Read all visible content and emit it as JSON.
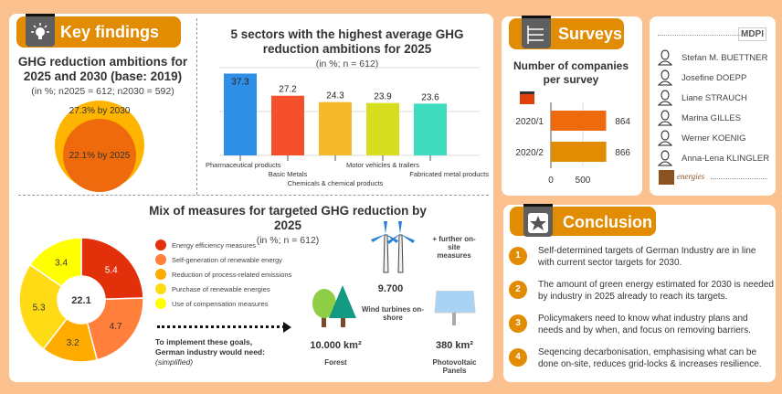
{
  "key_findings": {
    "header": "Key findings",
    "title": "GHG reduction ambitions for 2025 and 2030 (base: 2019)",
    "subtitle": "(in %; n2025 = 612; n2030 = 592)",
    "outer_label": "27.3% by 2030",
    "inner_label": "22.1% by 2025"
  },
  "sectors": {
    "title": "5 sectors with the highest average GHG reduction ambitions for 2025",
    "subtitle": "(in %; n = 612)"
  },
  "mix": {
    "title": "Mix of measures for targeted GHG reduction by 2025",
    "subtitle": "(in %; n = 612)",
    "center": "22.1",
    "arrow_text": "To implement these goals, German industry would need:",
    "arrow_note": "(simplified)"
  },
  "needs": {
    "further": "+ further on-site measures",
    "wind_value": "9.700",
    "wind_label": "Wind turbines on-shore",
    "forest_value": "10.000 km²",
    "forest_label": "Forest",
    "pv_value": "380 km²",
    "pv_label": "Photovoltaic Panels"
  },
  "surveys": {
    "header": "Surveys",
    "title": "Number of companies per survey"
  },
  "authors": {
    "publisher": "MDPI",
    "journal": "energies",
    "names": [
      "Stefan M. BUETTNER",
      "Josefine DOEPP",
      "Liane STRAUCH",
      "Marina GILLES",
      "Werner KOENIG",
      "Anna-Lena KLINGLER"
    ]
  },
  "conclusion": {
    "header": "Conclusion",
    "items": [
      {
        "n": "1",
        "text": "Self-determined targets of German Industry are in line with current sector targets for 2030."
      },
      {
        "n": "2",
        "text": "The amount of green energy estimated for 2030 is needed by industry in 2025 already to reach its targets."
      },
      {
        "n": "3",
        "text": "Policymakers need to know what industry plans and needs and by when, and focus on removing barriers."
      },
      {
        "n": "4",
        "text": "Seqencing decarbonisation, emphasising what can be done on-site, reduces grid-locks & increases resilience."
      }
    ]
  },
  "chart_data": [
    {
      "type": "bar",
      "title": "5 sectors with the highest average GHG reduction ambitions for 2025",
      "categories": [
        "Pharmaceutical products",
        "Basic Metals",
        "Chemicals & chemical products",
        "Motor vehicles & trailers",
        "Fabricated metal products"
      ],
      "values": [
        37.3,
        27.2,
        24.3,
        23.9,
        23.6
      ],
      "labels": [
        "37.3",
        "27.2",
        "24.3",
        "23.9",
        "23.6"
      ],
      "colors": [
        "#2f8fe6",
        "#f5502c",
        "#f6b92b",
        "#d6de1f",
        "#3fdcc0"
      ],
      "ylim": [
        0,
        40
      ]
    },
    {
      "type": "pie",
      "title": "Mix of measures for targeted GHG reduction by 2025",
      "categories": [
        "Energy efficiency measures",
        "Self-generation of renewable energy",
        "Reduction of process-related emissions",
        "Purchase of renewable energies",
        "Use of compensation measures"
      ],
      "values": [
        5.4,
        4.7,
        3.2,
        5.3,
        3.4
      ],
      "labels": [
        "5.4",
        "4.7",
        "3.2",
        "5.3",
        "3.4"
      ],
      "colors": [
        "#e2300a",
        "#ff7f3b",
        "#ffab00",
        "#ffdb15",
        "#ffff00"
      ],
      "total": 22.1
    },
    {
      "type": "bar",
      "orientation": "horizontal",
      "title": "Number of companies per survey",
      "categories": [
        "2020/1",
        "2020/2"
      ],
      "values": [
        864,
        866
      ],
      "labels": [
        "864",
        "866"
      ],
      "colors": [
        "#ee6a0c",
        "#e18c03"
      ],
      "xticks": [
        "0",
        "500"
      ],
      "xlim": [
        0,
        900
      ]
    }
  ]
}
